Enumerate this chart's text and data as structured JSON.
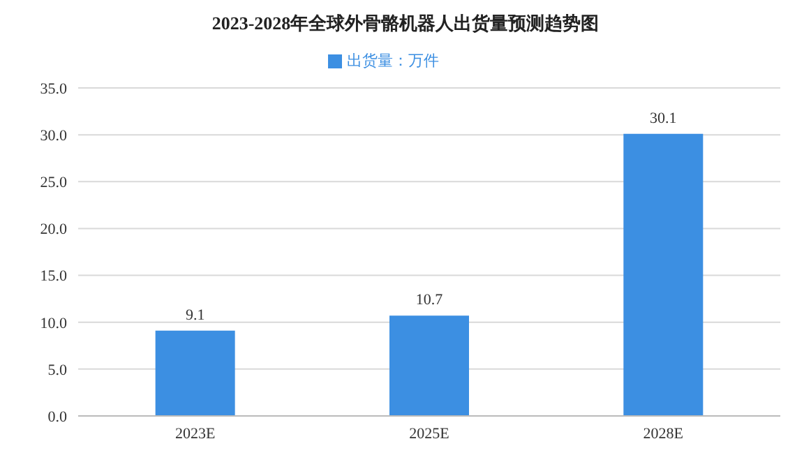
{
  "chart_data": {
    "type": "bar",
    "title": "2023-2028年全球外骨骼机器人出货量预测趋势图",
    "categories": [
      "2023E",
      "2025E",
      "2028E"
    ],
    "series": [
      {
        "name": "出货量：万件",
        "color": "#3c8fe2",
        "values": [
          9.1,
          10.7,
          30.1
        ]
      }
    ],
    "ylim": [
      0,
      35
    ],
    "yticks": [
      {
        "value": 0,
        "label": "0.0"
      },
      {
        "value": 5,
        "label": "5.0"
      },
      {
        "value": 10,
        "label": "10.0"
      },
      {
        "value": 15,
        "label": "15.0"
      },
      {
        "value": 20,
        "label": "20.0"
      },
      {
        "value": 25,
        "label": "25.0"
      },
      {
        "value": 30,
        "label": "30.0"
      },
      {
        "value": 35,
        "label": "35.0"
      }
    ],
    "grid": "y",
    "legend": "top",
    "data_labels": true
  }
}
